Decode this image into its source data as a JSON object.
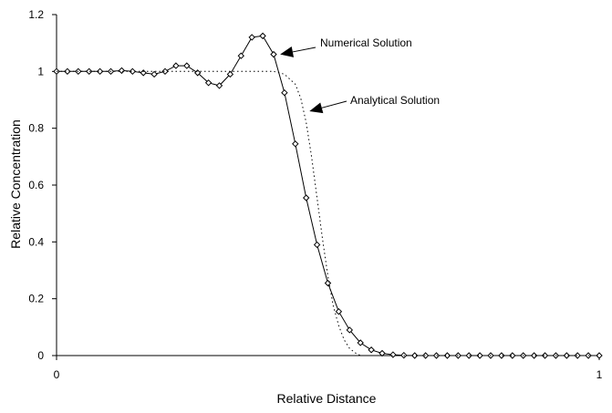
{
  "chart_data": {
    "type": "line",
    "title": "",
    "xlabel": "Relative Distance",
    "ylabel": "Relative Concentration",
    "xlim": [
      0,
      1
    ],
    "ylim": [
      0,
      1.2
    ],
    "x_ticks": [
      0,
      1
    ],
    "x_tick_labels": [
      "0",
      "1"
    ],
    "y_ticks": [
      0,
      0.2,
      0.4,
      0.6,
      0.8,
      1.0,
      1.2
    ],
    "y_tick_labels": [
      "0",
      "0.2",
      "0.4",
      "0.6",
      "0.8",
      "1",
      "1.2"
    ],
    "grid": false,
    "legend": "none",
    "series": [
      {
        "name": "Numerical Solution",
        "style": "solid-with-diamond-markers",
        "color": "#000000",
        "x": [
          0.0,
          0.02,
          0.04,
          0.06,
          0.08,
          0.1,
          0.12,
          0.14,
          0.16,
          0.18,
          0.2,
          0.22,
          0.24,
          0.26,
          0.28,
          0.3,
          0.32,
          0.34,
          0.36,
          0.38,
          0.4,
          0.42,
          0.44,
          0.46,
          0.48,
          0.5,
          0.52,
          0.54,
          0.56,
          0.58,
          0.6,
          0.62,
          0.64,
          0.66,
          0.68,
          0.7,
          0.72,
          0.74,
          0.76,
          0.78,
          0.8,
          0.82,
          0.84,
          0.86,
          0.88,
          0.9,
          0.92,
          0.94,
          0.96,
          0.98,
          1.0
        ],
        "y": [
          1.0,
          1.0,
          1.0,
          1.0,
          1.0,
          1.0,
          1.003,
          1.0,
          0.995,
          0.99,
          1.0,
          1.02,
          1.02,
          0.995,
          0.96,
          0.95,
          0.99,
          1.055,
          1.12,
          1.125,
          1.06,
          0.925,
          0.745,
          0.555,
          0.39,
          0.255,
          0.155,
          0.09,
          0.045,
          0.02,
          0.008,
          0.003,
          0.001,
          0.0,
          0.0,
          0.0,
          0.0,
          0.0,
          0.0,
          0.0,
          0.0,
          0.0,
          0.0,
          0.0,
          0.0,
          0.0,
          0.0,
          0.0,
          0.0,
          0.0,
          0.0
        ]
      },
      {
        "name": "Analytical Solution",
        "style": "dotted",
        "color": "#000000",
        "x": [
          0.0,
          0.4,
          0.42,
          0.44,
          0.45,
          0.46,
          0.47,
          0.48,
          0.49,
          0.5,
          0.51,
          0.52,
          0.53,
          0.54,
          0.55,
          0.56,
          1.0
        ],
        "y": [
          1.0,
          1.0,
          0.99,
          0.955,
          0.905,
          0.82,
          0.7,
          0.555,
          0.41,
          0.28,
          0.175,
          0.105,
          0.055,
          0.025,
          0.01,
          0.0,
          0.0
        ]
      }
    ],
    "annotations": [
      {
        "text": "Numerical Solution",
        "points_to": {
          "x": 0.412,
          "y": 1.06
        }
      },
      {
        "text": "Analytical Solution",
        "points_to": {
          "x": 0.466,
          "y": 0.86
        }
      }
    ]
  }
}
